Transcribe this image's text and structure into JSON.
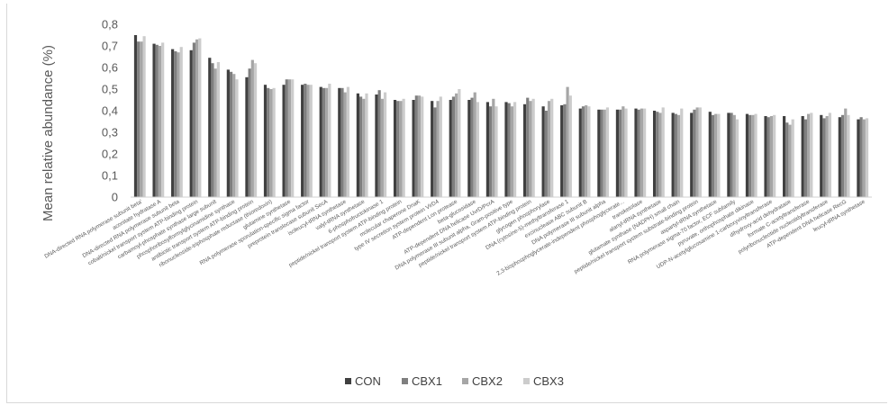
{
  "chart_data": {
    "type": "bar",
    "title": "",
    "xlabel": "",
    "ylabel": "Mean relative abundance (%)",
    "ylim": [
      0,
      0.8
    ],
    "yticks": [
      "0",
      "0,1",
      "0,2",
      "0,3",
      "0,4",
      "0,5",
      "0,6",
      "0,7",
      "0,8"
    ],
    "grid": false,
    "legend_position": "bottom",
    "colors": [
      "#404040",
      "#7f7f7f",
      "#a6a6a6",
      "#cccccc"
    ],
    "categories": [
      "DNA-directed RNA polymerase subunit beta'",
      "aconitate hydratase A",
      "DNA-directed RNA polymerase subunit beta",
      "cobalt/nickel transport system ATP-binding protein",
      "carbamoyl-phosphate synthase large subunit",
      "phosphoribosylformylglycinamidine synthase",
      "antibiotic transport system ATP-binding protein",
      "ribonucleoside-triphosphate reductase (thioredoxin)",
      "glutamine synthetase",
      "RNA polymerase sporulation-specific sigma factor",
      "preprotein translocase subunit SecA",
      "isoleucyl-tRNA synthetase",
      "valyl-tRNA synthetase",
      "6-phosphofructokinase 1",
      "peptide/nickel transport system ATP-binding protein",
      "molecular chaperone DnaK",
      "type IV secretion system protein VirD4",
      "ATP-dependent Lon protease",
      "beta-glucosidase",
      "ATP-dependent DNA helicase UvrD/PcrA",
      "DNA polymerase III subunit alpha, Gram-positive type",
      "peptide/nickel transport system ATP-binding protein",
      "glycogen phosphorylase",
      "DNA (cytosine-5)-methyltransferase 1",
      "excinuclease ABC subunit B",
      "DNA polymerase III subunit alpha",
      "2,3-bisphosphoglycerate-independent phosphoglycerate...",
      "transketolase",
      "alanyl-tRNA synthetase",
      "glutamate synthase (NADPH) small chain",
      "peptide/nickel transport system substrate-binding protein",
      "aspartyl-tRNA synthetase",
      "RNA polymerase sigma-70 factor, ECF subfamily",
      "pyruvate, orthophosphate dikinase",
      "UDP-N-acetylglucosamine 1-carboxyvinyltransferase",
      "dihydroxy-acid dehydratase",
      "formate C-acetyltransferase",
      "polyribonucleotide nucleotidyltransferase",
      "ATP-dependent DNA helicase RecG",
      "leucyl-tRNA synthetase"
    ],
    "series": [
      {
        "name": "CON",
        "values": [
          0.75,
          0.71,
          0.685,
          0.68,
          0.645,
          0.59,
          0.555,
          0.52,
          0.52,
          0.52,
          0.51,
          0.505,
          0.48,
          0.475,
          0.45,
          0.45,
          0.445,
          0.45,
          0.45,
          0.44,
          0.44,
          0.43,
          0.42,
          0.425,
          0.41,
          0.405,
          0.405,
          0.41,
          0.4,
          0.39,
          0.39,
          0.395,
          0.39,
          0.385,
          0.375,
          0.375,
          0.375,
          0.38,
          0.37,
          0.36
        ]
      },
      {
        "name": "CBX1",
        "values": [
          0.72,
          0.705,
          0.675,
          0.715,
          0.62,
          0.58,
          0.595,
          0.505,
          0.545,
          0.525,
          0.505,
          0.505,
          0.465,
          0.495,
          0.445,
          0.47,
          0.415,
          0.465,
          0.46,
          0.42,
          0.435,
          0.46,
          0.4,
          0.43,
          0.42,
          0.405,
          0.405,
          0.405,
          0.395,
          0.385,
          0.405,
          0.38,
          0.39,
          0.38,
          0.37,
          0.345,
          0.36,
          0.365,
          0.38,
          0.37
        ]
      },
      {
        "name": "CBX2",
        "values": [
          0.72,
          0.7,
          0.67,
          0.73,
          0.595,
          0.57,
          0.635,
          0.5,
          0.545,
          0.52,
          0.505,
          0.485,
          0.455,
          0.455,
          0.445,
          0.47,
          0.445,
          0.48,
          0.485,
          0.455,
          0.42,
          0.445,
          0.445,
          0.51,
          0.425,
          0.405,
          0.42,
          0.41,
          0.39,
          0.38,
          0.415,
          0.385,
          0.38,
          0.38,
          0.375,
          0.335,
          0.385,
          0.375,
          0.41,
          0.36
        ]
      },
      {
        "name": "CBX3",
        "values": [
          0.745,
          0.715,
          0.695,
          0.735,
          0.625,
          0.545,
          0.62,
          0.505,
          0.545,
          0.52,
          0.525,
          0.51,
          0.48,
          0.485,
          0.455,
          0.465,
          0.465,
          0.5,
          0.44,
          0.42,
          0.44,
          0.455,
          0.455,
          0.47,
          0.42,
          0.415,
          0.41,
          0.41,
          0.415,
          0.41,
          0.415,
          0.385,
          0.36,
          0.385,
          0.38,
          0.36,
          0.39,
          0.39,
          0.38,
          0.365
        ]
      }
    ]
  }
}
